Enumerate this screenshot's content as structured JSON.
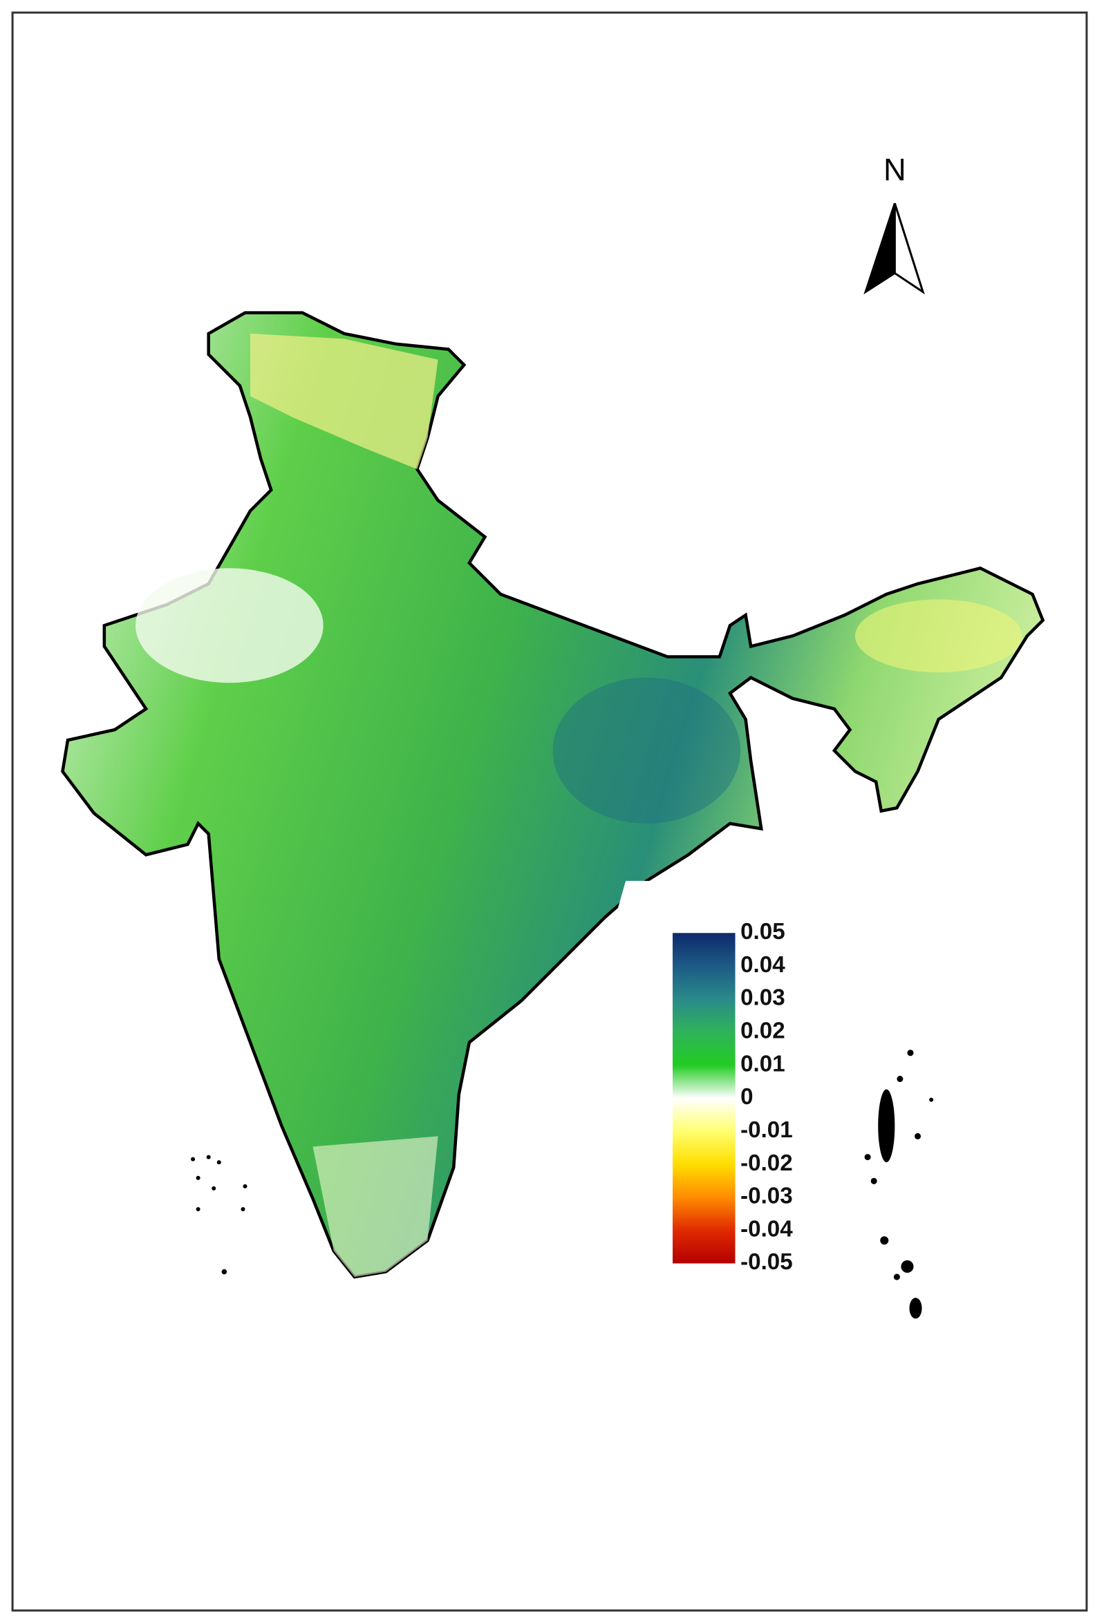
{
  "north_label": "N",
  "legend": {
    "lim": [
      -0.05,
      0.05
    ],
    "ticks": [
      0.05,
      0.04,
      0.03,
      0.02,
      0.01,
      0,
      -0.01,
      -0.02,
      -0.03,
      -0.04,
      -0.05
    ],
    "colors": [
      "#0d2a6b",
      "#1d5a86",
      "#2a8a8a",
      "#2fb35a",
      "#22cc22",
      "#ffffff",
      "#ffff70",
      "#ffdd00",
      "#ff8c00",
      "#e02a00",
      "#b30000"
    ]
  }
}
